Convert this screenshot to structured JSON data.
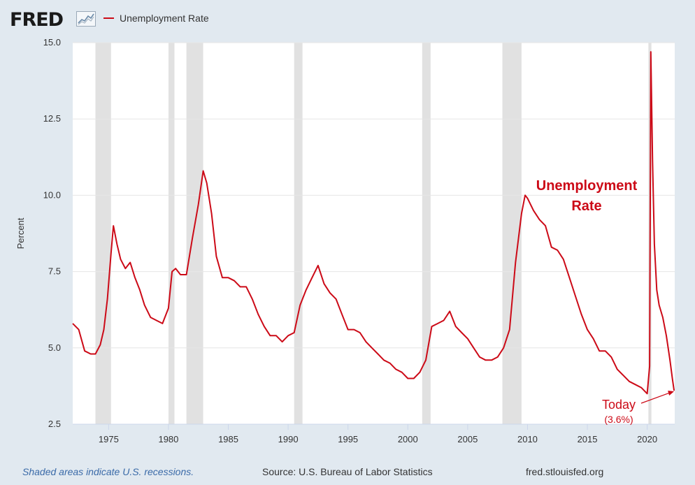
{
  "header": {
    "logo_text": "FRED",
    "logo_icon": "line-chart-icon"
  },
  "legend": {
    "label": "Unemployment Rate",
    "color": "#cc0a17"
  },
  "footer": {
    "recession_note": "Shaded areas indicate U.S. recessions.",
    "source": "Source: U.S. Bureau of Labor Statistics",
    "website": "fred.stlouisfed.org"
  },
  "chart_data": {
    "type": "line",
    "ylabel": "Percent",
    "xlabel": "",
    "xlim": [
      1972.0,
      2022.3
    ],
    "ylim": [
      2.5,
      15.0
    ],
    "y_ticks": [
      "15.0",
      "12.5",
      "10.0",
      "7.5",
      "5.0",
      "2.5"
    ],
    "x_ticks": [
      "1975",
      "1980",
      "1985",
      "1990",
      "1995",
      "2000",
      "2005",
      "2010",
      "2015",
      "2020"
    ],
    "grid": true,
    "recessions": [
      [
        1973.9,
        1975.2
      ],
      [
        1980.0,
        1980.5
      ],
      [
        1981.5,
        1982.9
      ],
      [
        1990.5,
        1991.2
      ],
      [
        2001.2,
        2001.9
      ],
      [
        2007.9,
        2009.5
      ],
      [
        2020.1,
        2020.35
      ]
    ],
    "series": [
      {
        "name": "Unemployment Rate",
        "color": "#cc0a17",
        "x": [
          1972.0,
          1972.5,
          1973.0,
          1973.5,
          1973.9,
          1974.3,
          1974.6,
          1974.9,
          1975.2,
          1975.4,
          1975.7,
          1976.0,
          1976.4,
          1976.8,
          1977.2,
          1977.6,
          1978.0,
          1978.5,
          1979.0,
          1979.5,
          1980.0,
          1980.3,
          1980.6,
          1981.0,
          1981.5,
          1982.0,
          1982.5,
          1982.9,
          1983.2,
          1983.6,
          1984.0,
          1984.5,
          1985.0,
          1985.5,
          1986.0,
          1986.5,
          1987.0,
          1987.5,
          1988.0,
          1988.5,
          1989.0,
          1989.5,
          1990.0,
          1990.5,
          1991.0,
          1991.5,
          1992.0,
          1992.5,
          1993.0,
          1993.5,
          1994.0,
          1994.5,
          1995.0,
          1995.5,
          1996.0,
          1996.5,
          1997.0,
          1997.5,
          1998.0,
          1998.5,
          1999.0,
          1999.5,
          2000.0,
          2000.5,
          2001.0,
          2001.5,
          2002.0,
          2002.5,
          2003.0,
          2003.5,
          2004.0,
          2004.5,
          2005.0,
          2005.5,
          2006.0,
          2006.5,
          2007.0,
          2007.5,
          2008.0,
          2008.5,
          2009.0,
          2009.5,
          2009.8,
          2010.0,
          2010.5,
          2011.0,
          2011.5,
          2012.0,
          2012.5,
          2013.0,
          2013.5,
          2014.0,
          2014.5,
          2015.0,
          2015.5,
          2016.0,
          2016.5,
          2017.0,
          2017.5,
          2018.0,
          2018.5,
          2019.0,
          2019.5,
          2020.0,
          2020.2,
          2020.3,
          2020.45,
          2020.6,
          2020.8,
          2021.0,
          2021.3,
          2021.6,
          2021.9,
          2022.1,
          2022.25
        ],
        "values": [
          5.8,
          5.6,
          4.9,
          4.8,
          4.8,
          5.1,
          5.6,
          6.6,
          8.1,
          9.0,
          8.4,
          7.9,
          7.6,
          7.8,
          7.3,
          6.9,
          6.4,
          6.0,
          5.9,
          5.8,
          6.3,
          7.5,
          7.6,
          7.4,
          7.4,
          8.6,
          9.7,
          10.8,
          10.4,
          9.4,
          8.0,
          7.3,
          7.3,
          7.2,
          7.0,
          7.0,
          6.6,
          6.1,
          5.7,
          5.4,
          5.4,
          5.2,
          5.4,
          5.5,
          6.4,
          6.9,
          7.3,
          7.7,
          7.1,
          6.8,
          6.6,
          6.1,
          5.6,
          5.6,
          5.5,
          5.2,
          5.0,
          4.8,
          4.6,
          4.5,
          4.3,
          4.2,
          4.0,
          4.0,
          4.2,
          4.6,
          5.7,
          5.8,
          5.9,
          6.2,
          5.7,
          5.5,
          5.3,
          5.0,
          4.7,
          4.6,
          4.6,
          4.7,
          5.0,
          5.6,
          7.8,
          9.4,
          10.0,
          9.9,
          9.5,
          9.2,
          9.0,
          8.3,
          8.2,
          7.9,
          7.3,
          6.7,
          6.1,
          5.6,
          5.3,
          4.9,
          4.9,
          4.7,
          4.3,
          4.1,
          3.9,
          3.8,
          3.7,
          3.5,
          4.4,
          14.7,
          11.1,
          8.4,
          6.9,
          6.4,
          6.0,
          5.4,
          4.6,
          4.0,
          3.6
        ]
      }
    ],
    "annotations": [
      {
        "text_line1": "Unemployment",
        "text_line2": "Rate",
        "color": "#cc0a17"
      },
      {
        "text": "Today",
        "subtext": "(3.6%)",
        "color": "#cc0a17"
      }
    ]
  }
}
